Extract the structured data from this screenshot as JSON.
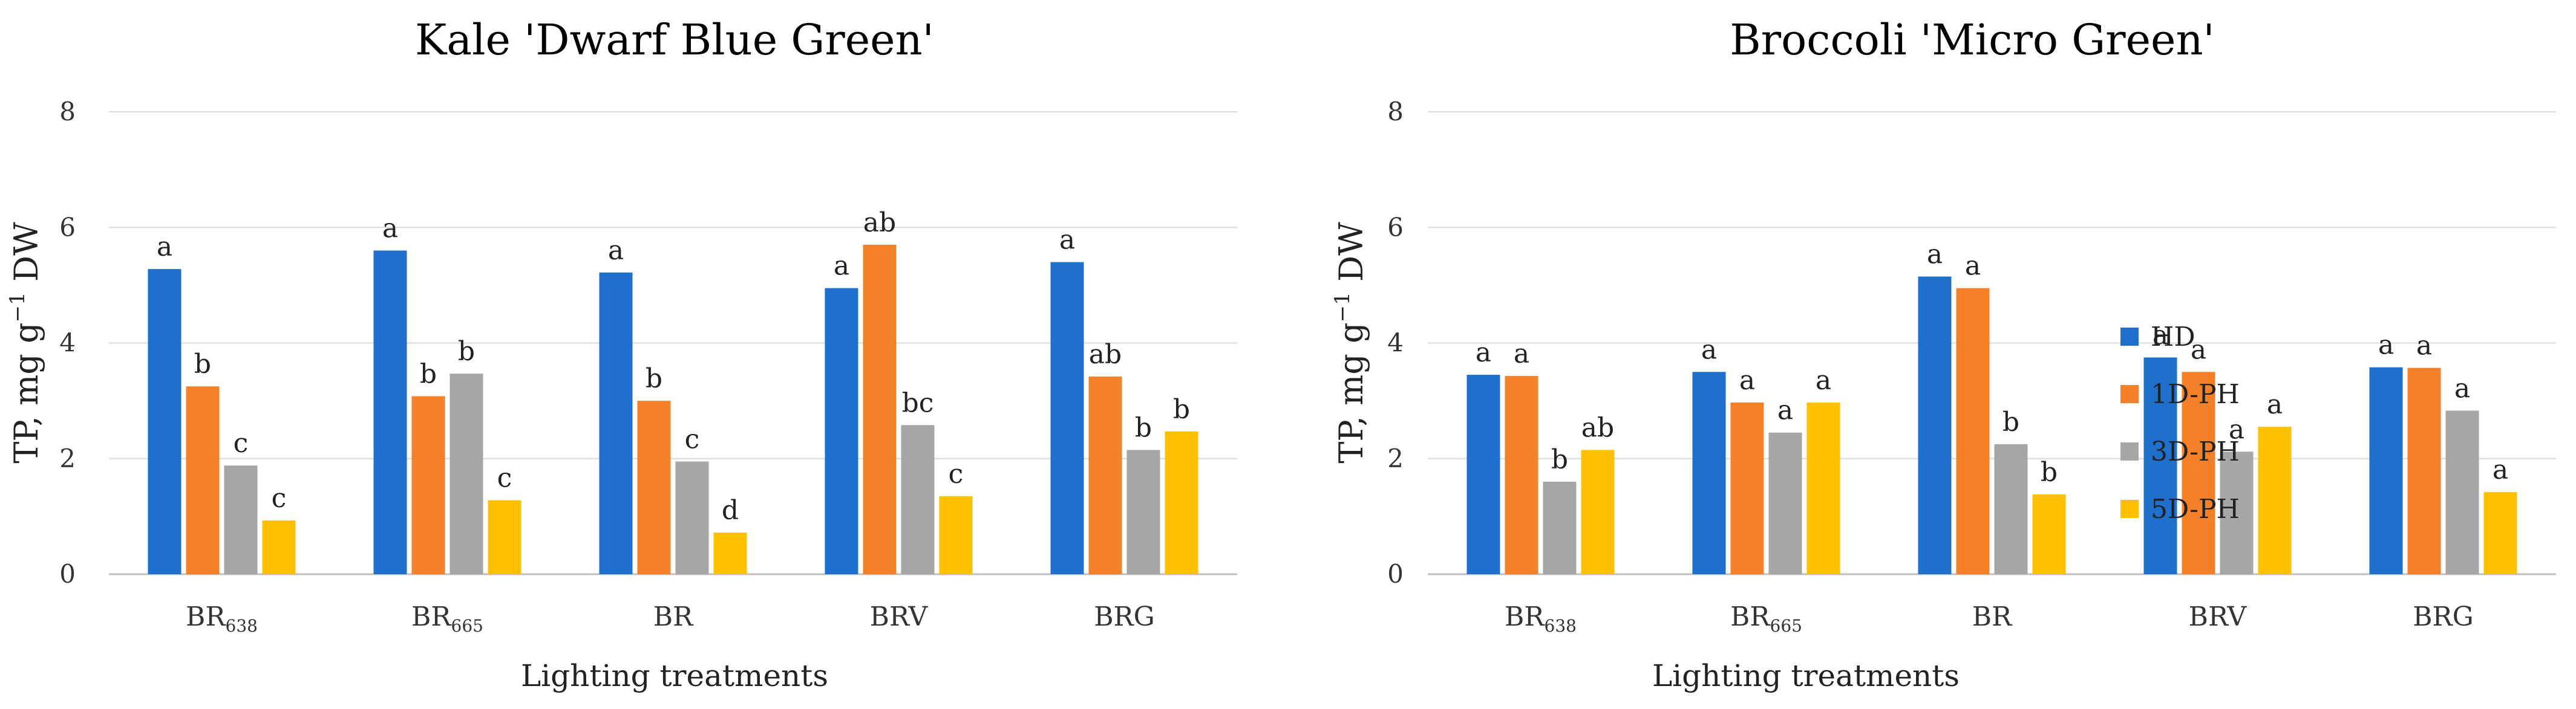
{
  "colors": {
    "HD": "#1f6fcc",
    "1D-PH": "#f5802a",
    "3D-PH": "#a6a6a6",
    "5D-PH": "#ffc000"
  },
  "legend": [
    "HD",
    "1D-PH",
    "3D-PH",
    "5D-PH"
  ],
  "chart_data": [
    {
      "type": "bar",
      "title": "Kale 'Dwarf Blue Green'",
      "xlabel": "Lighting treatments",
      "ylabel": {
        "base": "TP, mg g",
        "sup": "−1",
        "tail": " DW"
      },
      "ylim": [
        0,
        8
      ],
      "yticks": [
        "0",
        "2",
        "4",
        "6",
        "8"
      ],
      "grid": true,
      "categories": [
        {
          "base": "BR",
          "sub": "638"
        },
        {
          "base": "BR",
          "sub": "665"
        },
        {
          "base": "BR",
          "sub": ""
        },
        {
          "base": "BRV",
          "sub": ""
        },
        {
          "base": "BRG",
          "sub": ""
        }
      ],
      "series": [
        {
          "name": "HD",
          "values": [
            5.28,
            5.6,
            5.22,
            4.95,
            5.4
          ],
          "labels": [
            "a",
            "a",
            "a",
            "a",
            "a"
          ]
        },
        {
          "name": "1D-PH",
          "values": [
            3.25,
            3.08,
            3.0,
            5.7,
            3.42
          ],
          "labels": [
            "b",
            "b",
            "b",
            "ab",
            "ab"
          ]
        },
        {
          "name": "3D-PH",
          "values": [
            1.88,
            3.47,
            1.95,
            2.58,
            2.15
          ],
          "labels": [
            "c",
            "b",
            "c",
            "bc",
            "b"
          ]
        },
        {
          "name": "5D-PH",
          "values": [
            0.93,
            1.28,
            0.72,
            1.35,
            2.47
          ],
          "labels": [
            "c",
            "c",
            "d",
            "c",
            "b"
          ]
        }
      ]
    },
    {
      "type": "bar",
      "title": "Broccoli 'Micro Green'",
      "xlabel": "Lighting treatments",
      "ylabel": {
        "base": "TP, mg g",
        "sup": "−1",
        "tail": " DW"
      },
      "ylim": [
        0,
        8
      ],
      "yticks": [
        "0",
        "2",
        "4",
        "6",
        "8"
      ],
      "grid": true,
      "legend_position": "right",
      "categories": [
        {
          "base": "BR",
          "sub": "638"
        },
        {
          "base": "BR",
          "sub": "665"
        },
        {
          "base": "BR",
          "sub": ""
        },
        {
          "base": "BRV",
          "sub": ""
        },
        {
          "base": "BRG",
          "sub": ""
        }
      ],
      "series": [
        {
          "name": "HD",
          "values": [
            3.45,
            3.5,
            5.15,
            3.75,
            3.58
          ],
          "labels": [
            "a",
            "a",
            "a",
            "a",
            "a"
          ]
        },
        {
          "name": "1D-PH",
          "values": [
            3.43,
            2.97,
            4.95,
            3.5,
            3.57
          ],
          "labels": [
            "a",
            "a",
            "a",
            "a",
            "a"
          ]
        },
        {
          "name": "3D-PH",
          "values": [
            1.6,
            2.45,
            2.25,
            2.12,
            2.83
          ],
          "labels": [
            "b",
            "a",
            "b",
            "a",
            "a"
          ]
        },
        {
          "name": "5D-PH",
          "values": [
            2.15,
            2.97,
            1.38,
            2.55,
            1.42
          ],
          "labels": [
            "ab",
            "a",
            "b",
            "a",
            "a"
          ]
        }
      ]
    }
  ]
}
